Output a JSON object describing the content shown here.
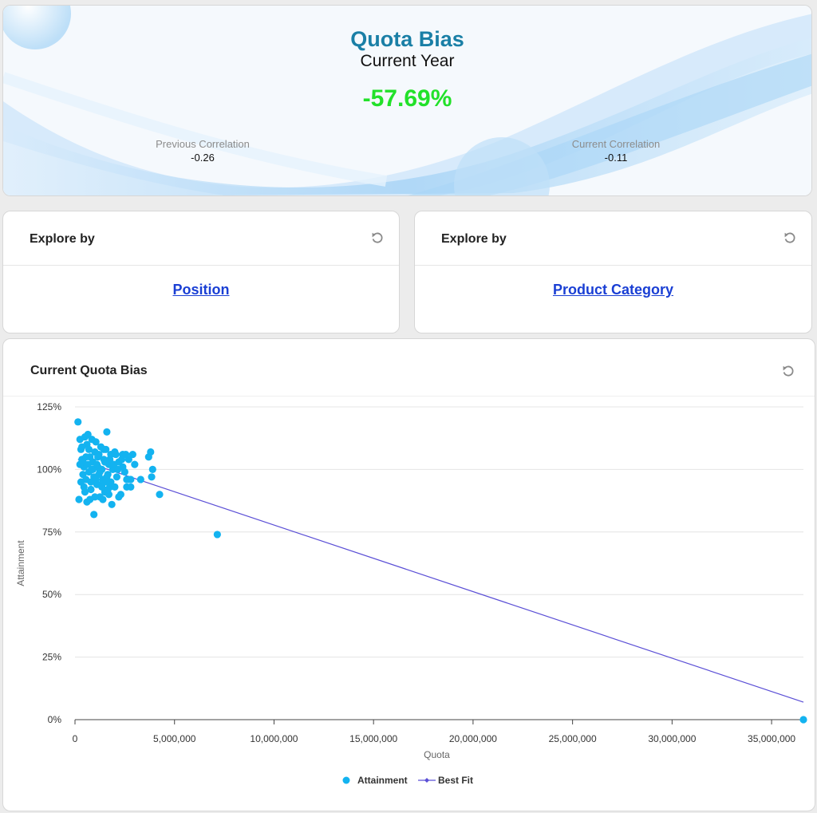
{
  "hero": {
    "title": "Quota Bias",
    "subtitle": "Current Year",
    "value": "-57.69%",
    "previous_label": "Previous Correlation",
    "previous_value": "-0.26",
    "current_label": "Current Correlation",
    "current_value": "-0.11",
    "value_color": "#22e12a",
    "title_color": "#1a7fa6"
  },
  "explore_left": {
    "title": "Explore by",
    "link": "Position",
    "icon": "refresh-icon"
  },
  "explore_right": {
    "title": "Explore by",
    "link": "Product Category",
    "icon": "refresh-icon"
  },
  "chart_card": {
    "title": "Current Quota Bias",
    "icon": "refresh-icon"
  },
  "chart_data": {
    "type": "scatter",
    "title": "Current Quota Bias",
    "xlabel": "Quota",
    "ylabel": "Attainment",
    "xlim": [
      0,
      36600000
    ],
    "ylim": [
      0,
      125
    ],
    "x_ticks": [
      "0",
      "5,000,000",
      "10,000,000",
      "15,000,000",
      "20,000,000",
      "25,000,000",
      "30,000,000",
      "35,000,000"
    ],
    "y_ticks": [
      "0%",
      "25%",
      "50%",
      "75%",
      "100%",
      "125%"
    ],
    "grid": true,
    "legend_position": "bottom-center",
    "series": [
      {
        "name": "Attainment",
        "color": "#13b3f0",
        "points": [
          [
            150000,
            119
          ],
          [
            250000,
            112
          ],
          [
            300000,
            108
          ],
          [
            350000,
            104
          ],
          [
            400000,
            98
          ],
          [
            450000,
            101
          ],
          [
            500000,
            113
          ],
          [
            550000,
            96
          ],
          [
            600000,
            110
          ],
          [
            650000,
            114
          ],
          [
            700000,
            99
          ],
          [
            750000,
            105
          ],
          [
            800000,
            92
          ],
          [
            850000,
            112
          ],
          [
            900000,
            103
          ],
          [
            950000,
            97
          ],
          [
            1000000,
            107
          ],
          [
            1050000,
            111
          ],
          [
            1100000,
            94
          ],
          [
            1150000,
            101
          ],
          [
            1200000,
            106
          ],
          [
            1250000,
            89
          ],
          [
            1300000,
            109
          ],
          [
            1350000,
            100
          ],
          [
            1400000,
            96
          ],
          [
            1450000,
            104
          ],
          [
            1500000,
            91
          ],
          [
            1550000,
            108
          ],
          [
            1600000,
            115
          ],
          [
            1650000,
            98
          ],
          [
            1700000,
            102
          ],
          [
            1750000,
            93
          ],
          [
            1800000,
            106
          ],
          [
            1850000,
            86
          ],
          [
            1900000,
            100
          ],
          [
            2000000,
            107
          ],
          [
            2100000,
            97
          ],
          [
            2200000,
            103
          ],
          [
            2300000,
            90
          ],
          [
            2400000,
            106
          ],
          [
            2500000,
            99
          ],
          [
            2600000,
            93
          ],
          [
            2700000,
            104
          ],
          [
            2800000,
            96
          ],
          [
            2900000,
            106
          ],
          [
            3000000,
            102
          ],
          [
            3300000,
            96
          ],
          [
            3700000,
            105
          ],
          [
            3800000,
            107
          ],
          [
            3850000,
            97
          ],
          [
            3900000,
            100
          ],
          [
            4250000,
            90
          ],
          [
            200000,
            88
          ],
          [
            300000,
            95
          ],
          [
            400000,
            103
          ],
          [
            500000,
            91
          ],
          [
            600000,
            87
          ],
          [
            700000,
            108
          ],
          [
            800000,
            95
          ],
          [
            900000,
            100
          ],
          [
            950000,
            82
          ],
          [
            1000000,
            89
          ],
          [
            1100000,
            102
          ],
          [
            1200000,
            98
          ],
          [
            1300000,
            94
          ],
          [
            1400000,
            88
          ],
          [
            1500000,
            103
          ],
          [
            1600000,
            97
          ],
          [
            1700000,
            90
          ],
          [
            1800000,
            95
          ],
          [
            2000000,
            93
          ],
          [
            2200000,
            89
          ],
          [
            2400000,
            101
          ],
          [
            2600000,
            96
          ],
          [
            2800000,
            93
          ],
          [
            250000,
            102
          ],
          [
            350000,
            109
          ],
          [
            450000,
            93
          ],
          [
            550000,
            105
          ],
          [
            650000,
            102
          ],
          [
            750000,
            88
          ],
          [
            850000,
            100
          ],
          [
            1050000,
            96
          ],
          [
            1150000,
            105
          ],
          [
            1250000,
            99
          ],
          [
            1350000,
            93
          ],
          [
            1450000,
            108
          ],
          [
            1550000,
            95
          ],
          [
            1650000,
            92
          ],
          [
            1750000,
            104
          ],
          [
            1950000,
            102
          ],
          [
            2050000,
            106
          ],
          [
            2150000,
            100
          ],
          [
            2350000,
            104
          ],
          [
            2550000,
            106
          ],
          [
            2700000,
            96
          ],
          [
            7150000,
            74
          ],
          [
            36600000,
            0
          ]
        ]
      },
      {
        "name": "Best Fit",
        "color": "#5b4fd6",
        "type": "line",
        "x": [
          150000,
          36600000
        ],
        "y": [
          104,
          7
        ]
      }
    ]
  }
}
